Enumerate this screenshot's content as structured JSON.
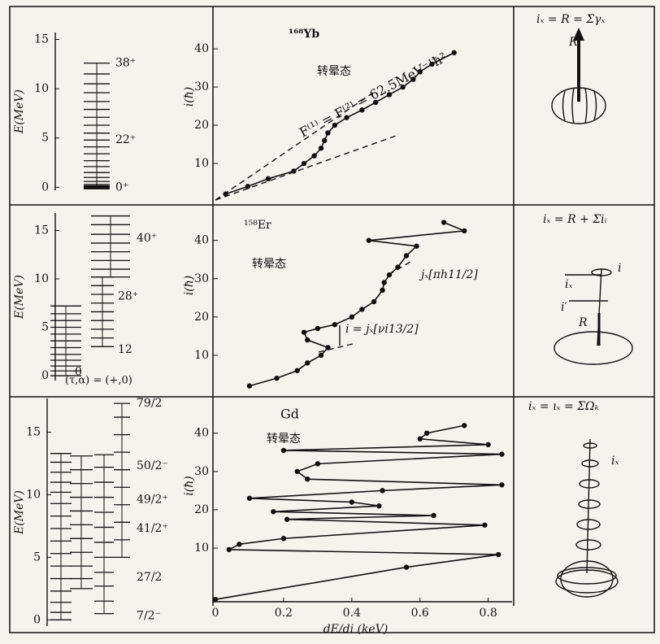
{
  "chart_data": [
    {
      "type": "level-scheme",
      "ylabel": "E(MeV)",
      "ylim": [
        -0.3,
        15.7
      ],
      "yticks": [
        0,
        5,
        10,
        15
      ],
      "bands": [
        {
          "values": [
            0,
            0.09,
            0.29,
            0.6,
            1.0,
            1.5,
            2.1,
            2.7,
            3.4,
            4.1,
            4.8,
            5.5,
            6.3,
            7.1,
            7.9,
            8.7,
            9.6,
            10.5,
            11.5,
            12.6
          ]
        }
      ],
      "level_labels": [
        {
          "value": 12.6,
          "label": "38⁺"
        },
        {
          "value": 4.8,
          "label": "22⁺"
        },
        {
          "value": 0,
          "label": "0⁺"
        }
      ]
    },
    {
      "type": "line",
      "title": "¹⁶⁸Yb",
      "ylabel": "i(ħ)",
      "xlim": [
        0,
        0.87
      ],
      "ylim": [
        0,
        46.4
      ],
      "yticks": [
        10,
        20,
        30,
        40
      ],
      "x": [
        0.03,
        0.095,
        0.155,
        0.23,
        0.26,
        0.29,
        0.31,
        0.32,
        0.33,
        0.35,
        0.385,
        0.43,
        0.47,
        0.51,
        0.55,
        0.58,
        0.6,
        0.635,
        0.7
      ],
      "series": [
        {
          "color": "#111111",
          "values": [
            2,
            4,
            6,
            8,
            10,
            12,
            14,
            16,
            18,
            20,
            22,
            24,
            26,
            28,
            30,
            32,
            34,
            36,
            39
          ]
        }
      ],
      "annotations": [
        "转晕态",
        "F⁽¹⁾ = F⁽²⁾ = 62.5MeV⁻¹ħ²"
      ]
    },
    {
      "type": "level-scheme",
      "ylabel": "E(MeV)",
      "ylim": [
        -0.5,
        16.8
      ],
      "yticks": [
        0,
        5,
        10,
        15
      ],
      "bands": [
        {
          "values": [
            0,
            0.5,
            1,
            1.6,
            2.2,
            2.9,
            3.6,
            4.3,
            5,
            5.7,
            6.4,
            7.2
          ]
        },
        {
          "values": [
            3,
            3.9,
            4.8,
            5.7,
            6.6,
            7.5,
            8.4,
            9.3,
            10.2
          ]
        },
        {
          "values": [
            10.2,
            11,
            11.9,
            12.8,
            13.7,
            14.6,
            15.6,
            16.5
          ]
        }
      ],
      "level_labels": [
        {
          "value": 14.2,
          "label": "40⁺"
        },
        {
          "value": 8.2,
          "label": "28⁺"
        },
        {
          "value": 2.7,
          "label": "12"
        },
        {
          "value": 0.4,
          "label": "0"
        }
      ],
      "caption": "(τ,α) = (+,0)"
    },
    {
      "type": "line",
      "title": "¹⁵⁸Er",
      "ylabel": "i(ħ)",
      "xlim": [
        0,
        0.87
      ],
      "ylim": [
        0,
        48
      ],
      "yticks": [
        10,
        20,
        30,
        40
      ],
      "x": [
        0.1,
        0.18,
        0.24,
        0.27,
        0.31,
        0.33,
        0.27,
        0.26,
        0.3,
        0.35,
        0.4,
        0.43,
        0.465,
        0.49,
        0.495,
        0.51,
        0.535,
        0.56,
        0.59,
        0.45,
        0.73,
        0.67
      ],
      "series": [
        {
          "color": "#111111",
          "values": [
            2,
            4,
            6,
            8,
            10,
            12,
            14,
            16,
            17,
            18,
            20,
            22,
            24,
            27,
            29,
            31,
            33,
            36,
            38.5,
            40,
            42.5,
            44.7
          ]
        }
      ],
      "annotations": [
        "转晕态",
        "jₓ[πh11/2]",
        "i = jₓ[νi13/2]"
      ]
    },
    {
      "type": "level-scheme",
      "ylabel": "E(MeV)",
      "ylim": [
        -0.5,
        17.7
      ],
      "yticks": [
        0,
        5,
        10,
        15
      ],
      "bands": [
        {
          "values": [
            0,
            0.6,
            1.4,
            2.3,
            3.3,
            4.3,
            5.3,
            6.3,
            7.3,
            8.3,
            9.3,
            10.2,
            11,
            11.8,
            12.6,
            13.3
          ]
        },
        {
          "values": [
            2.5,
            3.3,
            4.3,
            5.4,
            6.5,
            7.6,
            8.7,
            9.8,
            10.9,
            12,
            13.1
          ]
        },
        {
          "values": [
            0.5,
            1.5,
            2.7,
            3.8,
            5,
            6.2,
            7.4,
            8.6,
            9.8,
            11,
            12.2,
            13.2
          ]
        },
        {
          "values": [
            5,
            6.4,
            7.8,
            9.2,
            10.6,
            12,
            13.4,
            14.8,
            16.2,
            17.3
          ]
        }
      ],
      "level_labels": [
        {
          "value": 17.3,
          "label": "79/2"
        },
        {
          "value": 12.3,
          "label": "50/2⁻"
        },
        {
          "value": 9.6,
          "label": "49/2⁺"
        },
        {
          "value": 7.3,
          "label": "41/2⁺"
        },
        {
          "value": 3.4,
          "label": "27/2"
        },
        {
          "value": 0.3,
          "label": "7/2⁻"
        }
      ]
    },
    {
      "type": "line",
      "title": "Gd",
      "ylabel": "i(ħ)",
      "xlabel": "dE/di (keV)",
      "xlim": [
        0,
        0.87
      ],
      "ylim": [
        -4,
        48
      ],
      "yticks": [
        10,
        20,
        30,
        40
      ],
      "xticks": [
        0,
        0.2,
        0.4,
        0.6,
        0.8
      ],
      "x": [
        0,
        0.56,
        0.83,
        0.04,
        0.07,
        0.2,
        0.79,
        0.21,
        0.64,
        0.17,
        0.48,
        0.4,
        0.1,
        0.49,
        0.84,
        0.27,
        0.24,
        0.3,
        0.84,
        0.2,
        0.8,
        0.6,
        0.62,
        0.73
      ],
      "series": [
        {
          "color": "#111111",
          "values": [
            -3.4,
            5,
            8.3,
            9.6,
            11,
            12.5,
            16,
            17.5,
            18.5,
            19.5,
            21,
            22,
            23,
            25,
            26.5,
            28,
            30,
            32,
            34.5,
            35.5,
            37,
            38.5,
            40,
            42
          ]
        }
      ],
      "annotations": [
        "转晕态"
      ]
    }
  ],
  "diagrams": [
    {
      "labels": [
        "iₓ = R = Σγₓ",
        "R"
      ]
    },
    {
      "labels": [
        "iₓ = R + Σiᵢ",
        "i",
        "iₓ",
        "i′",
        "R"
      ]
    },
    {
      "labels": [
        "iₓ = ıₓ = ΣΩₖ",
        "iₓ"
      ]
    }
  ]
}
